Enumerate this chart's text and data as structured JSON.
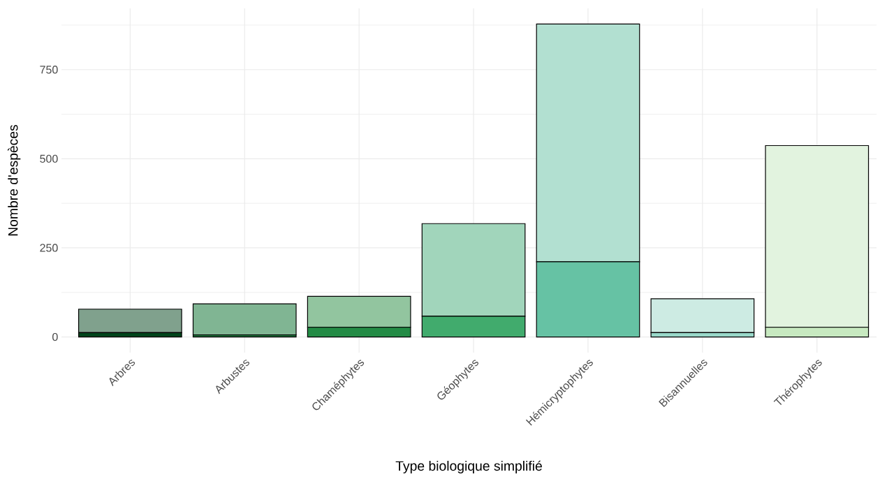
{
  "chart_data": {
    "type": "bar",
    "stacked": true,
    "xlabel": "Type biologique simplifié",
    "ylabel": "Nombre d'espèces",
    "categories": [
      "Arbres",
      "Arbustes",
      "Chaméphytes",
      "Géophytes",
      "Hémicryptophytes",
      "Bisannuelles",
      "Thérophytes"
    ],
    "series": [
      {
        "colors": [
          "#00441b",
          "#1b6b35",
          "#238b45",
          "#41ab6d",
          "#66c2a4",
          "#99d8c9",
          "#c7e9c0"
        ],
        "values": [
          12,
          6,
          27,
          58,
          211,
          12,
          27
        ]
      },
      {
        "colors": [
          "#80a18d",
          "#80b593",
          "#92c59f",
          "#a1d5bb",
          "#b2e0d1",
          "#cdebe3",
          "#e2f3df"
        ],
        "values": [
          66,
          87,
          87,
          260,
          667,
          95,
          510
        ]
      }
    ],
    "ylim": [
      -44,
      922
    ],
    "yticks": [
      0,
      {
        "value": 125,
        "label": null
      },
      250,
      {
        "value": 375,
        "label": null
      },
      500,
      {
        "value": 625,
        "label": null
      },
      750,
      {
        "value": 875,
        "label": null
      }
    ],
    "grid": true
  }
}
